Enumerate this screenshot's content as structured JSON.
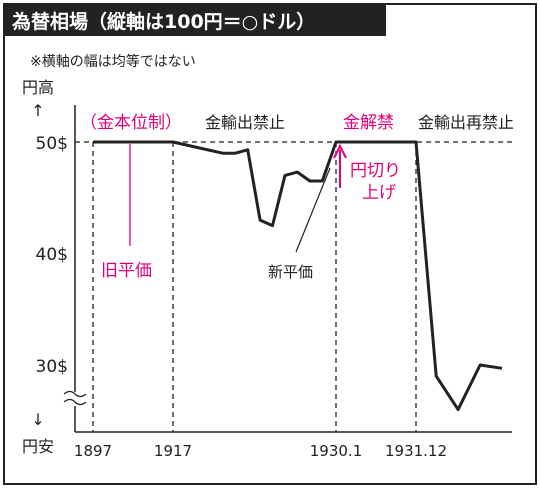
{
  "title": "為替相場（縦軸は100円＝○ドル）",
  "note": "※横軸の幅は均等ではない",
  "y_top_label": "円高",
  "y_bottom_label": "円安",
  "colors": {
    "accent": "#e2007a",
    "line": "#222222",
    "title_bg": "#222222"
  },
  "chart_data": {
    "type": "line",
    "y_ticks": [
      "50$",
      "40$",
      "30$"
    ],
    "x_ticks": [
      "1897",
      "1917",
      "1930.1",
      "1931.12"
    ],
    "ylim": [
      25,
      52
    ],
    "annotations": {
      "gold_standard": "（金本位制）",
      "gold_export_ban": "金輸出禁止",
      "gold_lift": "金解禁",
      "gold_reban": "金輸出再禁止",
      "old_parity": "旧平価",
      "new_parity": "新平価",
      "yen_up_1": "円切り",
      "yen_up_2": "上げ"
    },
    "series": [
      {
        "points": [
          [
            1897,
            50
          ],
          [
            1917,
            50
          ],
          [
            1919,
            49.5
          ],
          [
            1921,
            49
          ],
          [
            1922,
            49
          ],
          [
            1923,
            49.3
          ],
          [
            1924,
            43
          ],
          [
            1925,
            42.5
          ],
          [
            1926,
            47
          ],
          [
            1927,
            47.3
          ],
          [
            1928,
            46.5
          ],
          [
            1929,
            46.5
          ],
          [
            1930.1,
            50
          ],
          [
            1931.12,
            50
          ],
          [
            1932.5,
            29
          ],
          [
            1934,
            26
          ],
          [
            1935.5,
            30
          ],
          [
            1937,
            29.7
          ]
        ]
      }
    ]
  }
}
